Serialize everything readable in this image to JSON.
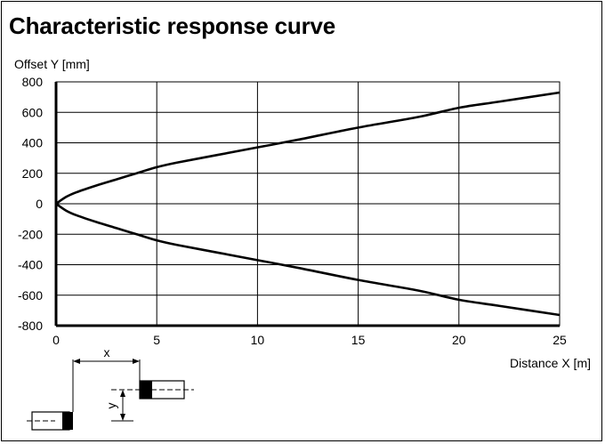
{
  "chart_data": {
    "type": "line",
    "title": "Characteristic response curve",
    "xlabel": "Distance X [m]",
    "ylabel": "Offset Y [mm]",
    "xlim": [
      0,
      25
    ],
    "ylim": [
      -800,
      800
    ],
    "x_ticks": [
      0,
      5,
      10,
      15,
      20,
      25
    ],
    "y_ticks": [
      800,
      600,
      400,
      200,
      0,
      -200,
      -400,
      -600,
      -800
    ],
    "grid": true,
    "series": [
      {
        "x": [
          0,
          0.5,
          1,
          2,
          3,
          4,
          5,
          6,
          8,
          10,
          12,
          15,
          18,
          20,
          22,
          25
        ],
        "y": [
          0,
          45,
          75,
          120,
          160,
          200,
          240,
          270,
          320,
          370,
          420,
          500,
          570,
          630,
          670,
          730
        ],
        "color": "#000000"
      },
      {
        "x": [
          0,
          0.5,
          1,
          2,
          3,
          4,
          5,
          6,
          8,
          10,
          12,
          15,
          18,
          20,
          22,
          25
        ],
        "y": [
          0,
          -45,
          -75,
          -120,
          -160,
          -200,
          -240,
          -270,
          -320,
          -370,
          -420,
          -500,
          -570,
          -630,
          -670,
          -730
        ],
        "color": "#000000"
      }
    ],
    "diagram": {
      "x_label": "x",
      "y_label": "y"
    }
  }
}
